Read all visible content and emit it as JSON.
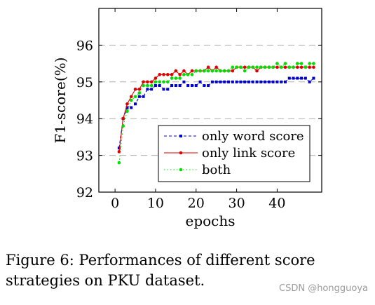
{
  "chart_data": {
    "type": "line",
    "title": "",
    "xlabel": "epochs",
    "ylabel": "F1-score(%)",
    "xlim": [
      -4,
      51
    ],
    "ylim": [
      92,
      97
    ],
    "xticks": [
      0,
      10,
      20,
      30,
      40
    ],
    "yticks": [
      92,
      93,
      94,
      95,
      96
    ],
    "grid": "horizontal dashed",
    "legend_position": "bottom-right",
    "series": [
      {
        "name": "only word score",
        "color": "#0000cc",
        "line_style": "dashed",
        "marker": "square",
        "x": [
          1,
          2,
          3,
          4,
          5,
          6,
          7,
          8,
          9,
          10,
          11,
          12,
          13,
          14,
          15,
          16,
          17,
          18,
          19,
          20,
          21,
          22,
          23,
          24,
          25,
          26,
          27,
          28,
          29,
          30,
          31,
          32,
          33,
          34,
          35,
          36,
          37,
          38,
          39,
          40,
          41,
          42,
          43,
          44,
          45,
          46,
          47,
          48,
          49
        ],
        "values": [
          93.2,
          94.0,
          94.3,
          94.3,
          94.4,
          94.6,
          94.6,
          94.8,
          94.8,
          94.9,
          94.9,
          94.8,
          94.8,
          94.9,
          94.9,
          94.9,
          95.0,
          94.9,
          94.9,
          94.9,
          95.0,
          94.9,
          94.9,
          95.0,
          95.0,
          95.0,
          95.0,
          95.0,
          95.0,
          95.0,
          95.0,
          95.0,
          95.0,
          95.0,
          95.0,
          95.0,
          95.0,
          95.0,
          95.0,
          95.0,
          95.0,
          95.0,
          95.1,
          95.1,
          95.1,
          95.1,
          95.1,
          95.0,
          95.1
        ]
      },
      {
        "name": "only link score",
        "color": "#dd0000",
        "line_style": "solid",
        "marker": "circle",
        "x": [
          1,
          2,
          3,
          4,
          5,
          6,
          7,
          8,
          9,
          10,
          11,
          12,
          13,
          14,
          15,
          16,
          17,
          18,
          19,
          20,
          21,
          22,
          23,
          24,
          25,
          26,
          27,
          28,
          29,
          30,
          31,
          32,
          33,
          34,
          35,
          36,
          37,
          38,
          39,
          40,
          41,
          42,
          43,
          44,
          45,
          46,
          47,
          48,
          49
        ],
        "values": [
          93.1,
          94.0,
          94.4,
          94.6,
          94.8,
          94.8,
          95.0,
          95.0,
          95.0,
          95.1,
          95.2,
          95.2,
          95.2,
          95.2,
          95.3,
          95.2,
          95.3,
          95.2,
          95.3,
          95.3,
          95.3,
          95.3,
          95.4,
          95.3,
          95.4,
          95.3,
          95.3,
          95.3,
          95.3,
          95.4,
          95.4,
          95.4,
          95.4,
          95.4,
          95.3,
          95.4,
          95.4,
          95.4,
          95.4,
          95.4,
          95.4,
          95.4,
          95.4,
          95.4,
          95.4,
          95.4,
          95.4,
          95.4,
          95.4
        ]
      },
      {
        "name": "both",
        "color": "#00dd00",
        "line_style": "dotted",
        "marker": "circle",
        "x": [
          1,
          2,
          3,
          4,
          5,
          6,
          7,
          8,
          9,
          10,
          11,
          12,
          13,
          14,
          15,
          16,
          17,
          18,
          19,
          20,
          21,
          22,
          23,
          24,
          25,
          26,
          27,
          28,
          29,
          30,
          31,
          32,
          33,
          34,
          35,
          36,
          37,
          38,
          39,
          40,
          41,
          42,
          43,
          44,
          45,
          46,
          47,
          48,
          49
        ],
        "values": [
          92.8,
          93.8,
          94.2,
          94.5,
          94.6,
          94.7,
          94.9,
          94.9,
          94.9,
          95.0,
          95.0,
          95.0,
          95.0,
          95.1,
          95.1,
          95.1,
          95.2,
          95.2,
          95.2,
          95.3,
          95.3,
          95.3,
          95.3,
          95.3,
          95.3,
          95.3,
          95.3,
          95.3,
          95.4,
          95.4,
          95.4,
          95.3,
          95.4,
          95.4,
          95.4,
          95.4,
          95.4,
          95.4,
          95.4,
          95.5,
          95.4,
          95.5,
          95.4,
          95.4,
          95.5,
          95.5,
          95.4,
          95.5,
          95.5
        ]
      }
    ]
  },
  "caption": "Figure 6: Performances of different score strategies on PKU dataset.",
  "watermark": "CSDN @hongguoya"
}
